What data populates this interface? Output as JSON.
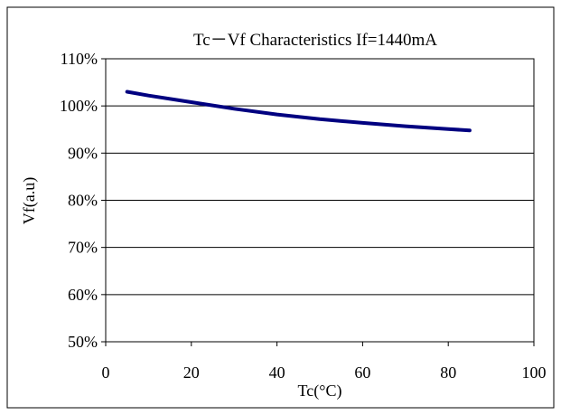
{
  "chart_data": {
    "type": "line",
    "title": "Tc－Vf  Characteristics     If=1440mA",
    "xlabel": "Tc(°C)",
    "ylabel": "Vf(a.u)",
    "xlim": [
      0,
      100
    ],
    "ylim": [
      50,
      110
    ],
    "x_ticks": [
      0,
      20,
      40,
      60,
      80,
      100
    ],
    "y_ticks": [
      50,
      60,
      70,
      80,
      90,
      100,
      110
    ],
    "y_tick_labels": [
      "50%",
      "60%",
      "70%",
      "80%",
      "90%",
      "100%",
      "110%"
    ],
    "grid": "horizontal",
    "series": [
      {
        "x": [
          5,
          10,
          20,
          30,
          40,
          50,
          60,
          70,
          80,
          85
        ],
        "y": [
          103.0,
          102.2,
          100.8,
          99.4,
          98.2,
          97.2,
          96.4,
          95.7,
          95.1,
          94.8
        ],
        "color": "#000080"
      }
    ]
  }
}
